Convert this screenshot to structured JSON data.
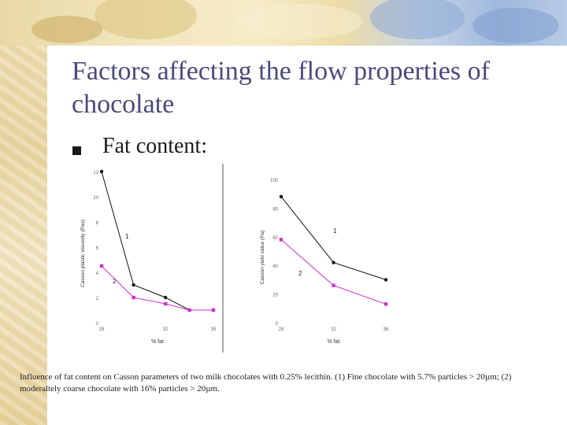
{
  "slide": {
    "title": "Factors affecting the flow properties of chocolate",
    "bullet": "Fat content:",
    "caption": "Influence of fat content on Casson parameters of two milk chocolates with 0.25% lecithin. (1) Fine chocolate with 5.7% particles > 20µm; (2) moderaltely coarse chocolate with 16% particles > 20µm."
  },
  "colors": {
    "title": "#4a4a7a",
    "series1": "#111111",
    "series2": "#cc33cc"
  },
  "chart_data": [
    {
      "type": "line",
      "title": "",
      "xlabel": "% fat",
      "ylabel": "Casson plastic viscosity (Pas)",
      "x_ticks": [
        "28",
        "32",
        "35"
      ],
      "y_ticks": [
        "0",
        "2",
        "4",
        "6",
        "8",
        "10",
        "12"
      ],
      "xlim": [
        28,
        35
      ],
      "ylim": [
        0,
        12
      ],
      "series": [
        {
          "name": "1",
          "x": [
            28,
            30,
            32,
            33.5,
            35
          ],
          "y": [
            12,
            3,
            2,
            1,
            1
          ]
        },
        {
          "name": "2",
          "x": [
            28,
            30,
            32,
            33.5,
            35
          ],
          "y": [
            4.5,
            2,
            1.5,
            1,
            1
          ]
        }
      ]
    },
    {
      "type": "line",
      "title": "",
      "xlabel": "% fat",
      "ylabel": "Casson yield value (Pa)",
      "x_ticks": [
        "28",
        "32",
        "36"
      ],
      "y_ticks": [
        "0",
        "20",
        "40",
        "60",
        "80",
        "100"
      ],
      "xlim": [
        28,
        36
      ],
      "ylim": [
        0,
        100
      ],
      "series": [
        {
          "name": "1",
          "x": [
            28,
            32,
            36
          ],
          "y": [
            88,
            42,
            30
          ]
        },
        {
          "name": "2",
          "x": [
            28,
            32,
            36
          ],
          "y": [
            58,
            26,
            13
          ]
        }
      ]
    }
  ]
}
